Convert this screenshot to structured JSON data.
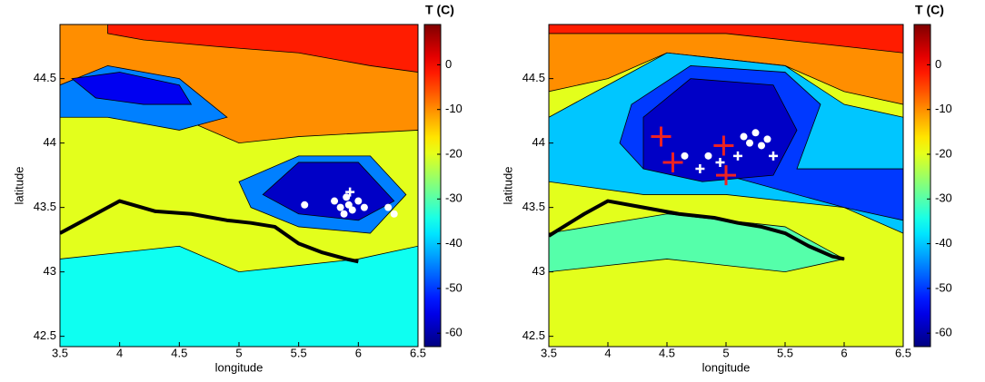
{
  "chart_data": [
    {
      "type": "contour",
      "xlabel": "longitude",
      "ylabel": "latitude",
      "colorbar_label": "T (C)",
      "xlim": [
        3.5,
        6.5
      ],
      "xticks": [
        3.5,
        4,
        4.5,
        5,
        5.5,
        6,
        6.5
      ],
      "ylim": [
        42.42,
        44.92
      ],
      "yticks": [
        42.5,
        43,
        43.5,
        44,
        44.5
      ],
      "clim": [
        -63,
        9
      ],
      "cticks": [
        -60,
        -50,
        -40,
        -30,
        -20,
        -10,
        0
      ],
      "base_level": -10,
      "regions": [
        {
          "level": -2,
          "lon": [
            3.9,
            6.5,
            6.5,
            6.1,
            5.5,
            4.8,
            4.2,
            3.9
          ],
          "lat": [
            44.92,
            44.92,
            44.55,
            44.6,
            44.7,
            44.75,
            44.8,
            44.85
          ]
        },
        {
          "level": -20,
          "lon": [
            3.5,
            4.5,
            5,
            5.5,
            6.5,
            6.5,
            3.5
          ],
          "lat": [
            44.3,
            44.2,
            44.0,
            44.05,
            44.1,
            42.42,
            42.42
          ]
        },
        {
          "level": -35,
          "lon": [
            3.5,
            4.5,
            5,
            5.5,
            6,
            6.5,
            6.5,
            3.5
          ],
          "lat": [
            43.1,
            43.2,
            43.0,
            43.05,
            43.1,
            43.2,
            42.42,
            42.42
          ]
        },
        {
          "level": -45,
          "lon": [
            3.5,
            3.9,
            4.5,
            4.9,
            4.5,
            3.9,
            3.5
          ],
          "lat": [
            44.45,
            44.6,
            44.5,
            44.2,
            44.1,
            44.2,
            44.2
          ]
        },
        {
          "level": -55,
          "lon": [
            3.6,
            4.0,
            4.5,
            4.6,
            4.2,
            3.8
          ],
          "lat": [
            44.5,
            44.55,
            44.45,
            44.3,
            44.3,
            44.35
          ]
        },
        {
          "level": -45,
          "lon": [
            5.0,
            5.5,
            6.1,
            6.4,
            6.1,
            5.5,
            5.1
          ],
          "lat": [
            43.7,
            43.9,
            43.9,
            43.6,
            43.3,
            43.35,
            43.5
          ]
        },
        {
          "level": -58,
          "lon": [
            5.2,
            5.5,
            6.0,
            6.3,
            6.0,
            5.5
          ],
          "lat": [
            43.6,
            43.85,
            43.85,
            43.55,
            43.4,
            43.45
          ]
        }
      ],
      "track": {
        "color": "#000000",
        "lon": [
          3.5,
          3.8,
          4.0,
          4.3,
          4.6,
          4.9,
          5.1,
          5.3,
          5.5,
          5.7,
          5.9,
          6.0
        ],
        "lat": [
          43.3,
          43.45,
          43.55,
          43.47,
          43.45,
          43.4,
          43.38,
          43.35,
          43.22,
          43.15,
          43.1,
          43.08
        ]
      },
      "markers": [
        {
          "shape": "dot",
          "color": "#ffffff",
          "size": 4,
          "x": [
            5.55,
            5.8,
            5.85,
            5.9,
            5.95,
            6.0,
            6.05,
            5.88,
            5.92,
            6.25,
            6.3
          ],
          "y": [
            43.52,
            43.55,
            43.5,
            43.58,
            43.48,
            43.55,
            43.5,
            43.45,
            43.52,
            43.5,
            43.45
          ]
        },
        {
          "shape": "plus",
          "color": "#ffffff",
          "size": 5,
          "x": [
            5.93
          ],
          "y": [
            43.62
          ]
        }
      ]
    },
    {
      "type": "contour",
      "xlabel": "longitude",
      "ylabel": "latitude",
      "colorbar_label": "T (C)",
      "xlim": [
        3.5,
        6.5
      ],
      "xticks": [
        3.5,
        4,
        4.5,
        5,
        5.5,
        6,
        6.5
      ],
      "ylim": [
        42.42,
        44.92
      ],
      "yticks": [
        42.5,
        43,
        43.5,
        44,
        44.5
      ],
      "clim": [
        -63,
        9
      ],
      "cticks": [
        -60,
        -50,
        -40,
        -30,
        -20,
        -10,
        0
      ],
      "base_level": -20,
      "regions": [
        {
          "level": -10,
          "lon": [
            3.5,
            6.5,
            6.5,
            6,
            5.5,
            4.5,
            4,
            3.5
          ],
          "lat": [
            44.92,
            44.92,
            44.3,
            44.4,
            44.6,
            44.7,
            44.5,
            44.4
          ]
        },
        {
          "level": -2,
          "lon": [
            3.5,
            6.5,
            6.5,
            5,
            4,
            3.5
          ],
          "lat": [
            44.92,
            44.92,
            44.7,
            44.85,
            44.85,
            44.85
          ]
        },
        {
          "level": -40,
          "lon": [
            3.5,
            4,
            4.5,
            5.5,
            6.0,
            6.5,
            6.5,
            6.0,
            5,
            4.3,
            3.5
          ],
          "lat": [
            44.2,
            44.45,
            44.7,
            44.6,
            44.3,
            44.2,
            43.3,
            43.5,
            43.6,
            43.6,
            43.7
          ]
        },
        {
          "level": -50,
          "lon": [
            4.2,
            4.7,
            5.5,
            5.8,
            5.6,
            6.5,
            6.5,
            6,
            5,
            4.3,
            4.1
          ],
          "lat": [
            44.3,
            44.6,
            44.55,
            44.3,
            43.8,
            43.8,
            43.4,
            43.5,
            43.75,
            43.8,
            44.0
          ]
        },
        {
          "level": -58,
          "lon": [
            4.3,
            4.7,
            5.4,
            5.6,
            5.4,
            4.8,
            4.3
          ],
          "lat": [
            44.2,
            44.5,
            44.45,
            44.1,
            43.75,
            43.7,
            43.8
          ]
        },
        {
          "level": -30,
          "lon": [
            3.5,
            4.5,
            5.5,
            6,
            5.5,
            4.5,
            3.5
          ],
          "lat": [
            43.3,
            43.45,
            43.35,
            43.1,
            43.0,
            43.1,
            43.0
          ]
        }
      ],
      "track": {
        "color": "#000000",
        "lon": [
          3.5,
          3.8,
          4.0,
          4.3,
          4.6,
          4.9,
          5.1,
          5.3,
          5.5,
          5.7,
          5.9,
          6.0
        ],
        "lat": [
          43.28,
          43.45,
          43.55,
          43.5,
          43.45,
          43.42,
          43.38,
          43.35,
          43.3,
          43.2,
          43.12,
          43.1
        ]
      },
      "markers": [
        {
          "shape": "dot",
          "color": "#ffffff",
          "size": 4,
          "x": [
            4.65,
            4.85,
            5.15,
            5.2,
            5.25,
            5.3,
            5.35
          ],
          "y": [
            43.9,
            43.9,
            44.05,
            44.0,
            44.08,
            43.98,
            44.03
          ]
        },
        {
          "shape": "plus",
          "color": "#ffffff",
          "size": 5,
          "x": [
            4.78,
            4.95,
            5.1,
            5.4
          ],
          "y": [
            43.8,
            43.85,
            43.9,
            43.9
          ]
        },
        {
          "shape": "plus",
          "color": "#ee2222",
          "size": 11,
          "x": [
            4.45,
            4.55,
            4.98,
            5.0
          ],
          "y": [
            44.05,
            43.85,
            43.98,
            43.75
          ]
        }
      ]
    }
  ]
}
